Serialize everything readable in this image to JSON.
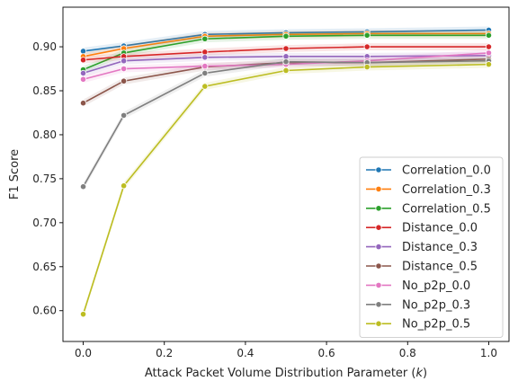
{
  "chart_data": {
    "type": "line",
    "title": "",
    "xlabel": "Attack Packet Volume Distribution Parameter (",
    "xlabel_var": "k",
    "xlabel_close": ")",
    "ylabel": "F1 Score",
    "xlim": [
      -0.05,
      1.05
    ],
    "ylim": [
      0.565,
      0.945
    ],
    "xticks": [
      0.0,
      0.2,
      0.4,
      0.6,
      0.8,
      1.0
    ],
    "xtick_labels": [
      "0.0",
      "0.2",
      "0.4",
      "0.6",
      "0.8",
      "1.0"
    ],
    "yticks": [
      0.6,
      0.65,
      0.7,
      0.75,
      0.8,
      0.85,
      0.9
    ],
    "ytick_labels": [
      "0.60",
      "0.65",
      "0.70",
      "0.75",
      "0.80",
      "0.85",
      "0.90"
    ],
    "grid": false,
    "legend_position": "lower-right",
    "x": [
      0.0,
      0.1,
      0.3,
      0.5,
      0.7,
      1.0
    ],
    "series": [
      {
        "name": "Correlation_0.0",
        "color": "#1f77b4",
        "values": [
          0.895,
          0.901,
          0.914,
          0.916,
          0.917,
          0.919
        ]
      },
      {
        "name": "Correlation_0.3",
        "color": "#ff7f0e",
        "values": [
          0.889,
          0.898,
          0.912,
          0.914,
          0.915,
          0.915
        ]
      },
      {
        "name": "Correlation_0.5",
        "color": "#2ca02c",
        "values": [
          0.874,
          0.893,
          0.909,
          0.912,
          0.913,
          0.913
        ]
      },
      {
        "name": "Distance_0.0",
        "color": "#d62728",
        "values": [
          0.885,
          0.889,
          0.894,
          0.898,
          0.9,
          0.9
        ]
      },
      {
        "name": "Distance_0.3",
        "color": "#9467bd",
        "values": [
          0.87,
          0.884,
          0.888,
          0.889,
          0.889,
          0.89
        ]
      },
      {
        "name": "Distance_0.5",
        "color": "#8c564b",
        "values": [
          0.836,
          0.861,
          0.877,
          0.882,
          0.882,
          0.886
        ]
      },
      {
        "name": "No_p2p_0.0",
        "color": "#e377c2",
        "values": [
          0.863,
          0.875,
          0.878,
          0.88,
          0.884,
          0.893
        ]
      },
      {
        "name": "No_p2p_0.3",
        "color": "#7f7f7f",
        "values": [
          0.741,
          0.822,
          0.87,
          0.883,
          0.882,
          0.884
        ]
      },
      {
        "name": "No_p2p_0.5",
        "color": "#bcbd22",
        "values": [
          0.596,
          0.742,
          0.855,
          0.873,
          0.877,
          0.88
        ]
      }
    ]
  }
}
